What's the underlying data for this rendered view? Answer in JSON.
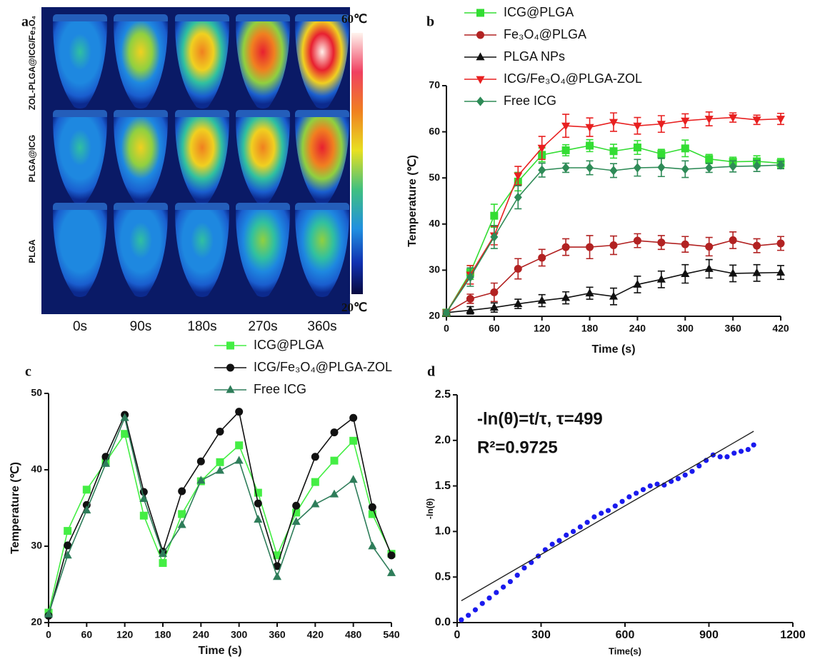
{
  "image_panel": {
    "label": "a",
    "row_labels": [
      "ZOL-PLGA@ICG/Fe₃O₄",
      "PLGA@ICG",
      "PLGA"
    ],
    "column_labels": [
      "0s",
      "90s",
      "180s",
      "270s",
      "360s"
    ],
    "colorbar_max_label": "60℃",
    "colorbar_min_label": "20℃"
  },
  "chart_data": [
    {
      "type": "line",
      "label": "b",
      "x_label": "Time (s)",
      "y_label": "Temperature (℃)",
      "x": [
        0,
        30,
        60,
        90,
        120,
        150,
        180,
        210,
        240,
        270,
        300,
        330,
        360,
        390,
        420
      ],
      "xlim": [
        0,
        420
      ],
      "xticks": [
        0,
        60,
        120,
        180,
        240,
        300,
        360,
        420
      ],
      "ylim": [
        20,
        70
      ],
      "yticks": [
        20,
        30,
        40,
        50,
        60,
        70
      ],
      "series": [
        {
          "name": "ICG@PLGA",
          "color": "#33dd33",
          "marker": "square",
          "values": [
            20.8,
            29.5,
            41.8,
            49.2,
            55,
            56,
            57,
            55.8,
            56.6,
            55.2,
            56.4,
            54.1,
            53.5,
            53.6,
            53.2
          ],
          "errors": [
            0.5,
            1.5,
            2.5,
            2,
            1.5,
            1.2,
            1.3,
            1.5,
            1.5,
            1,
            1.8,
            1,
            1,
            1.2,
            1
          ]
        },
        {
          "name": "Fe₃O₄@PLGA",
          "color": "#b22222",
          "marker": "circle",
          "values": [
            20.8,
            23.8,
            25.2,
            30.3,
            32.7,
            35,
            35,
            35.4,
            36.4,
            36,
            35.6,
            35.1,
            36.5,
            35.3,
            35.8
          ],
          "errors": [
            0.5,
            1,
            2,
            2.2,
            1.8,
            1.8,
            2.5,
            2,
            1.5,
            1.5,
            1.7,
            2,
            1.8,
            1.5,
            1.5
          ]
        },
        {
          "name": "PLGA NPs",
          "color": "#111111",
          "marker": "triangle",
          "values": [
            20.8,
            21.3,
            21.9,
            22.7,
            23.4,
            24,
            25,
            24.3,
            26.9,
            28,
            29.2,
            30.3,
            29.3,
            29.4,
            29.5
          ],
          "errors": [
            0.5,
            0.8,
            1,
            1,
            1.3,
            1.3,
            1.3,
            1.8,
            1.8,
            1.8,
            2,
            2,
            1.8,
            1.8,
            1.5
          ]
        },
        {
          "name": "ICG/Fe₃O₄@PLGA-ZOL",
          "color": "#e82020",
          "marker": "down-triangle",
          "values": [
            20.8,
            29,
            37.5,
            50.5,
            56.5,
            61.3,
            61,
            62.1,
            61.3,
            61.7,
            62.4,
            62.8,
            63.1,
            62.6,
            62.8
          ],
          "errors": [
            0.5,
            2,
            2,
            2,
            2.5,
            2.5,
            2,
            2,
            1.8,
            1.8,
            1.5,
            1.5,
            1,
            1,
            1.2
          ]
        },
        {
          "name": "Free ICG",
          "color": "#2e8b57",
          "marker": "diamond",
          "values": [
            20.8,
            28.5,
            37.2,
            45.8,
            51.7,
            52.2,
            52.2,
            51.6,
            52.2,
            52.3,
            51.9,
            52.2,
            52.5,
            52.6,
            52.8
          ],
          "errors": [
            0.5,
            2,
            2.5,
            2.5,
            1.5,
            1,
            1.5,
            1.5,
            1.8,
            2,
            1.8,
            1,
            1.2,
            1.2,
            0.8
          ]
        }
      ]
    },
    {
      "type": "line",
      "label": "c",
      "x_label": "Time (s)",
      "y_label": "Temperature (℃)",
      "x": [
        0,
        30,
        60,
        90,
        120,
        150,
        180,
        210,
        240,
        270,
        300,
        330,
        360,
        390,
        420,
        450,
        480,
        510,
        540
      ],
      "xlim": [
        0,
        540
      ],
      "xticks": [
        0,
        60,
        120,
        180,
        240,
        300,
        360,
        420,
        480,
        540
      ],
      "ylim": [
        20,
        50
      ],
      "yticks": [
        20,
        30,
        40,
        50
      ],
      "series": [
        {
          "name": "ICG@PLGA",
          "color": "#44ee44",
          "marker": "square",
          "values": [
            21.3,
            32,
            37.4,
            41,
            44.7,
            34,
            27.8,
            34.2,
            38.5,
            41,
            43.2,
            37,
            28.8,
            34.4,
            38.4,
            41.2,
            43.8,
            34.2,
            29
          ]
        },
        {
          "name": "ICG/Fe₃O₄@PLGA-ZOL",
          "color": "#111111",
          "marker": "circle",
          "values": [
            20.9,
            30.1,
            35.4,
            41.7,
            47.2,
            37.1,
            29.3,
            37.2,
            41.1,
            45,
            47.6,
            35.6,
            27.4,
            35.3,
            41.7,
            44.9,
            46.8,
            35.1,
            28.8
          ]
        },
        {
          "name": "Free ICG",
          "color": "#2e7d5a",
          "marker": "triangle",
          "values": [
            21.1,
            28.8,
            34.7,
            40.8,
            46.8,
            36.2,
            29,
            32.8,
            38.6,
            39.9,
            41.2,
            33.5,
            26,
            33.2,
            35.5,
            36.8,
            38.7,
            30,
            26.5
          ]
        }
      ]
    },
    {
      "type": "scatter",
      "label": "d",
      "x_label": "Time(s)",
      "y_label": "-ln(θ)",
      "annotations": [
        "-ln(θ)=t/τ, τ=499",
        "R²=0.9725"
      ],
      "xlim": [
        0,
        1200
      ],
      "xticks": [
        0,
        300,
        600,
        900,
        1200
      ],
      "ylim": [
        0,
        2.5
      ],
      "yticks": [
        {
          "value": 0,
          "label": "0.0"
        },
        {
          "value": 0.5,
          "label": "0.5"
        },
        {
          "value": 1,
          "label": "1.0"
        },
        {
          "value": 1.5,
          "label": "1.5"
        },
        {
          "value": 2,
          "label": "2.0"
        },
        {
          "value": 2.5,
          "label": "2.5"
        }
      ],
      "color": "#1a1aee",
      "x": [
        15,
        40,
        65,
        90,
        115,
        140,
        165,
        190,
        215,
        240,
        265,
        290,
        315,
        340,
        365,
        390,
        415,
        440,
        465,
        490,
        515,
        540,
        565,
        590,
        615,
        640,
        665,
        690,
        715,
        740,
        765,
        790,
        815,
        840,
        865,
        890,
        915,
        940,
        965,
        990,
        1015,
        1040,
        1060
      ],
      "values": [
        0.03,
        0.08,
        0.14,
        0.21,
        0.27,
        0.33,
        0.39,
        0.45,
        0.52,
        0.6,
        0.66,
        0.73,
        0.8,
        0.86,
        0.9,
        0.96,
        1.0,
        1.05,
        1.1,
        1.16,
        1.2,
        1.23,
        1.28,
        1.33,
        1.38,
        1.42,
        1.46,
        1.5,
        1.52,
        1.51,
        1.55,
        1.58,
        1.62,
        1.66,
        1.72,
        1.78,
        1.84,
        1.82,
        1.82,
        1.86,
        1.88,
        1.9,
        1.95
      ],
      "fit": {
        "color": "#222222",
        "x": [
          15,
          1060
        ],
        "values": [
          0.24,
          2.1
        ]
      }
    }
  ]
}
